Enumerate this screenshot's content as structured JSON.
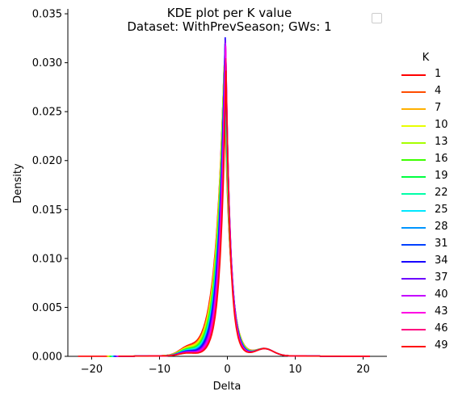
{
  "chart_data": {
    "type": "line",
    "title": "KDE plot per K value",
    "subtitle": "Dataset: WithPrevSeason; GWs: 1",
    "xlabel": "Delta",
    "ylabel": "Density",
    "xlim": [
      -23.5,
      23.5
    ],
    "ylim": [
      0,
      0.0355
    ],
    "xticks": [
      -20,
      -10,
      0,
      10,
      20
    ],
    "xtick_labels": [
      "−20",
      "−10",
      "0",
      "10",
      "20"
    ],
    "yticks": [
      0.0,
      0.005,
      0.01,
      0.015,
      0.02,
      0.025,
      0.03,
      0.035
    ],
    "ytick_labels": [
      "0.000",
      "0.005",
      "0.010",
      "0.015",
      "0.020",
      "0.025",
      "0.030",
      "0.035"
    ],
    "grid": false,
    "legend_title": "K",
    "legend_placement": "right",
    "series": [
      {
        "name": "1",
        "color": "#ff0000",
        "peak": 0.0292
      },
      {
        "name": "4",
        "color": "#ff4d00",
        "peak": 0.0296
      },
      {
        "name": "7",
        "color": "#ffb000",
        "peak": 0.03
      },
      {
        "name": "10",
        "color": "#e8ff00",
        "peak": 0.0305
      },
      {
        "name": "13",
        "color": "#a6ff00",
        "peak": 0.031
      },
      {
        "name": "16",
        "color": "#3dff00",
        "peak": 0.0305
      },
      {
        "name": "19",
        "color": "#00ff40",
        "peak": 0.03
      },
      {
        "name": "22",
        "color": "#00ffa8",
        "peak": 0.031
      },
      {
        "name": "25",
        "color": "#00e8ff",
        "peak": 0.0315
      },
      {
        "name": "28",
        "color": "#0095ff",
        "peak": 0.032
      },
      {
        "name": "31",
        "color": "#0041ff",
        "peak": 0.033
      },
      {
        "name": "34",
        "color": "#1700ff",
        "peak": 0.0335
      },
      {
        "name": "37",
        "color": "#6d00ff",
        "peak": 0.033
      },
      {
        "name": "40",
        "color": "#c400ff",
        "peak": 0.0325
      },
      {
        "name": "43",
        "color": "#ff00e4",
        "peak": 0.032
      },
      {
        "name": "46",
        "color": "#ff0080",
        "peak": 0.0305
      },
      {
        "name": "49",
        "color": "#ff0a0a",
        "peak": 0.029
      }
    ]
  }
}
